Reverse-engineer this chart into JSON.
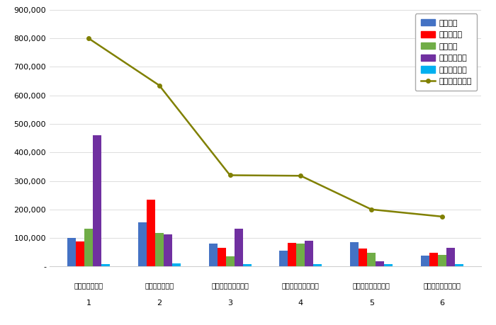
{
  "x_labels_top": [
    "한국특허정보원",
    "한국발명진흥회",
    "한국특허전략개발원",
    "한국특허기술진흥원",
    "한국지식재산보호원",
    "한국지식재산연구원"
  ],
  "x_labels_bottom": [
    "1",
    "2",
    "3",
    "4",
    "5",
    "6"
  ],
  "참여지수": [
    100000,
    155000,
    80000,
    55000,
    85000,
    38000
  ],
  "미디어지수": [
    88000,
    235000,
    65000,
    83000,
    62000,
    48000
  ],
  "소통지수": [
    133000,
    118000,
    35000,
    80000,
    48000,
    40000
  ],
  "커뮤니티지수": [
    460000,
    112000,
    132000,
    90000,
    18000,
    65000
  ],
  "사회공헌지수": [
    8000,
    10000,
    8000,
    8000,
    8000,
    8000
  ],
  "브랜드평판지수": [
    800000,
    635000,
    320000,
    318000,
    200000,
    175000
  ],
  "bar_colors": {
    "참여지수": "#4472C4",
    "미디어지수": "#FF0000",
    "소통지수": "#70AD47",
    "커뮤니티지수": "#7030A0",
    "사회공헌지수": "#00B0F0"
  },
  "line_color": "#808000",
  "ylim": [
    0,
    900000
  ],
  "yticks": [
    0,
    100000,
    200000,
    300000,
    400000,
    500000,
    600000,
    700000,
    800000,
    900000
  ],
  "background_color": "#ffffff",
  "figsize": [
    7.0,
    4.59
  ],
  "dpi": 100
}
